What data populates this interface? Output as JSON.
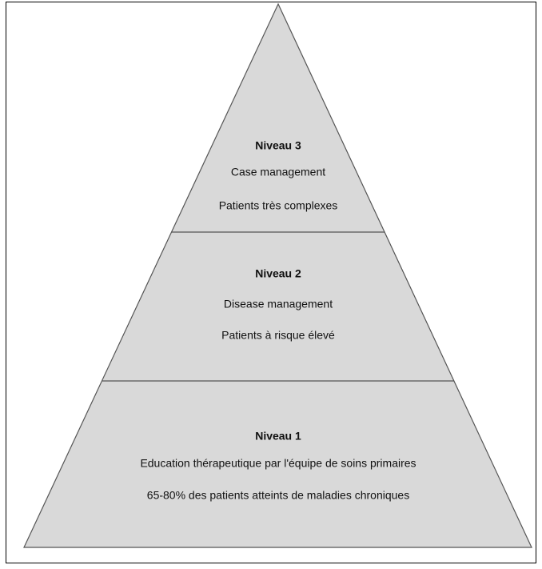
{
  "levels": [
    {
      "title": "Niveau 3",
      "lines": [
        "Case management",
        "Patients très complexes"
      ]
    },
    {
      "title": "Niveau 2",
      "lines": [
        "Disease management",
        "Patients à risque élevé"
      ]
    },
    {
      "title": "Niveau 1",
      "lines": [
        "Education thérapeutique par l'équipe de soins primaires",
        "65-80% des patients atteints de maladies chroniques"
      ]
    }
  ]
}
